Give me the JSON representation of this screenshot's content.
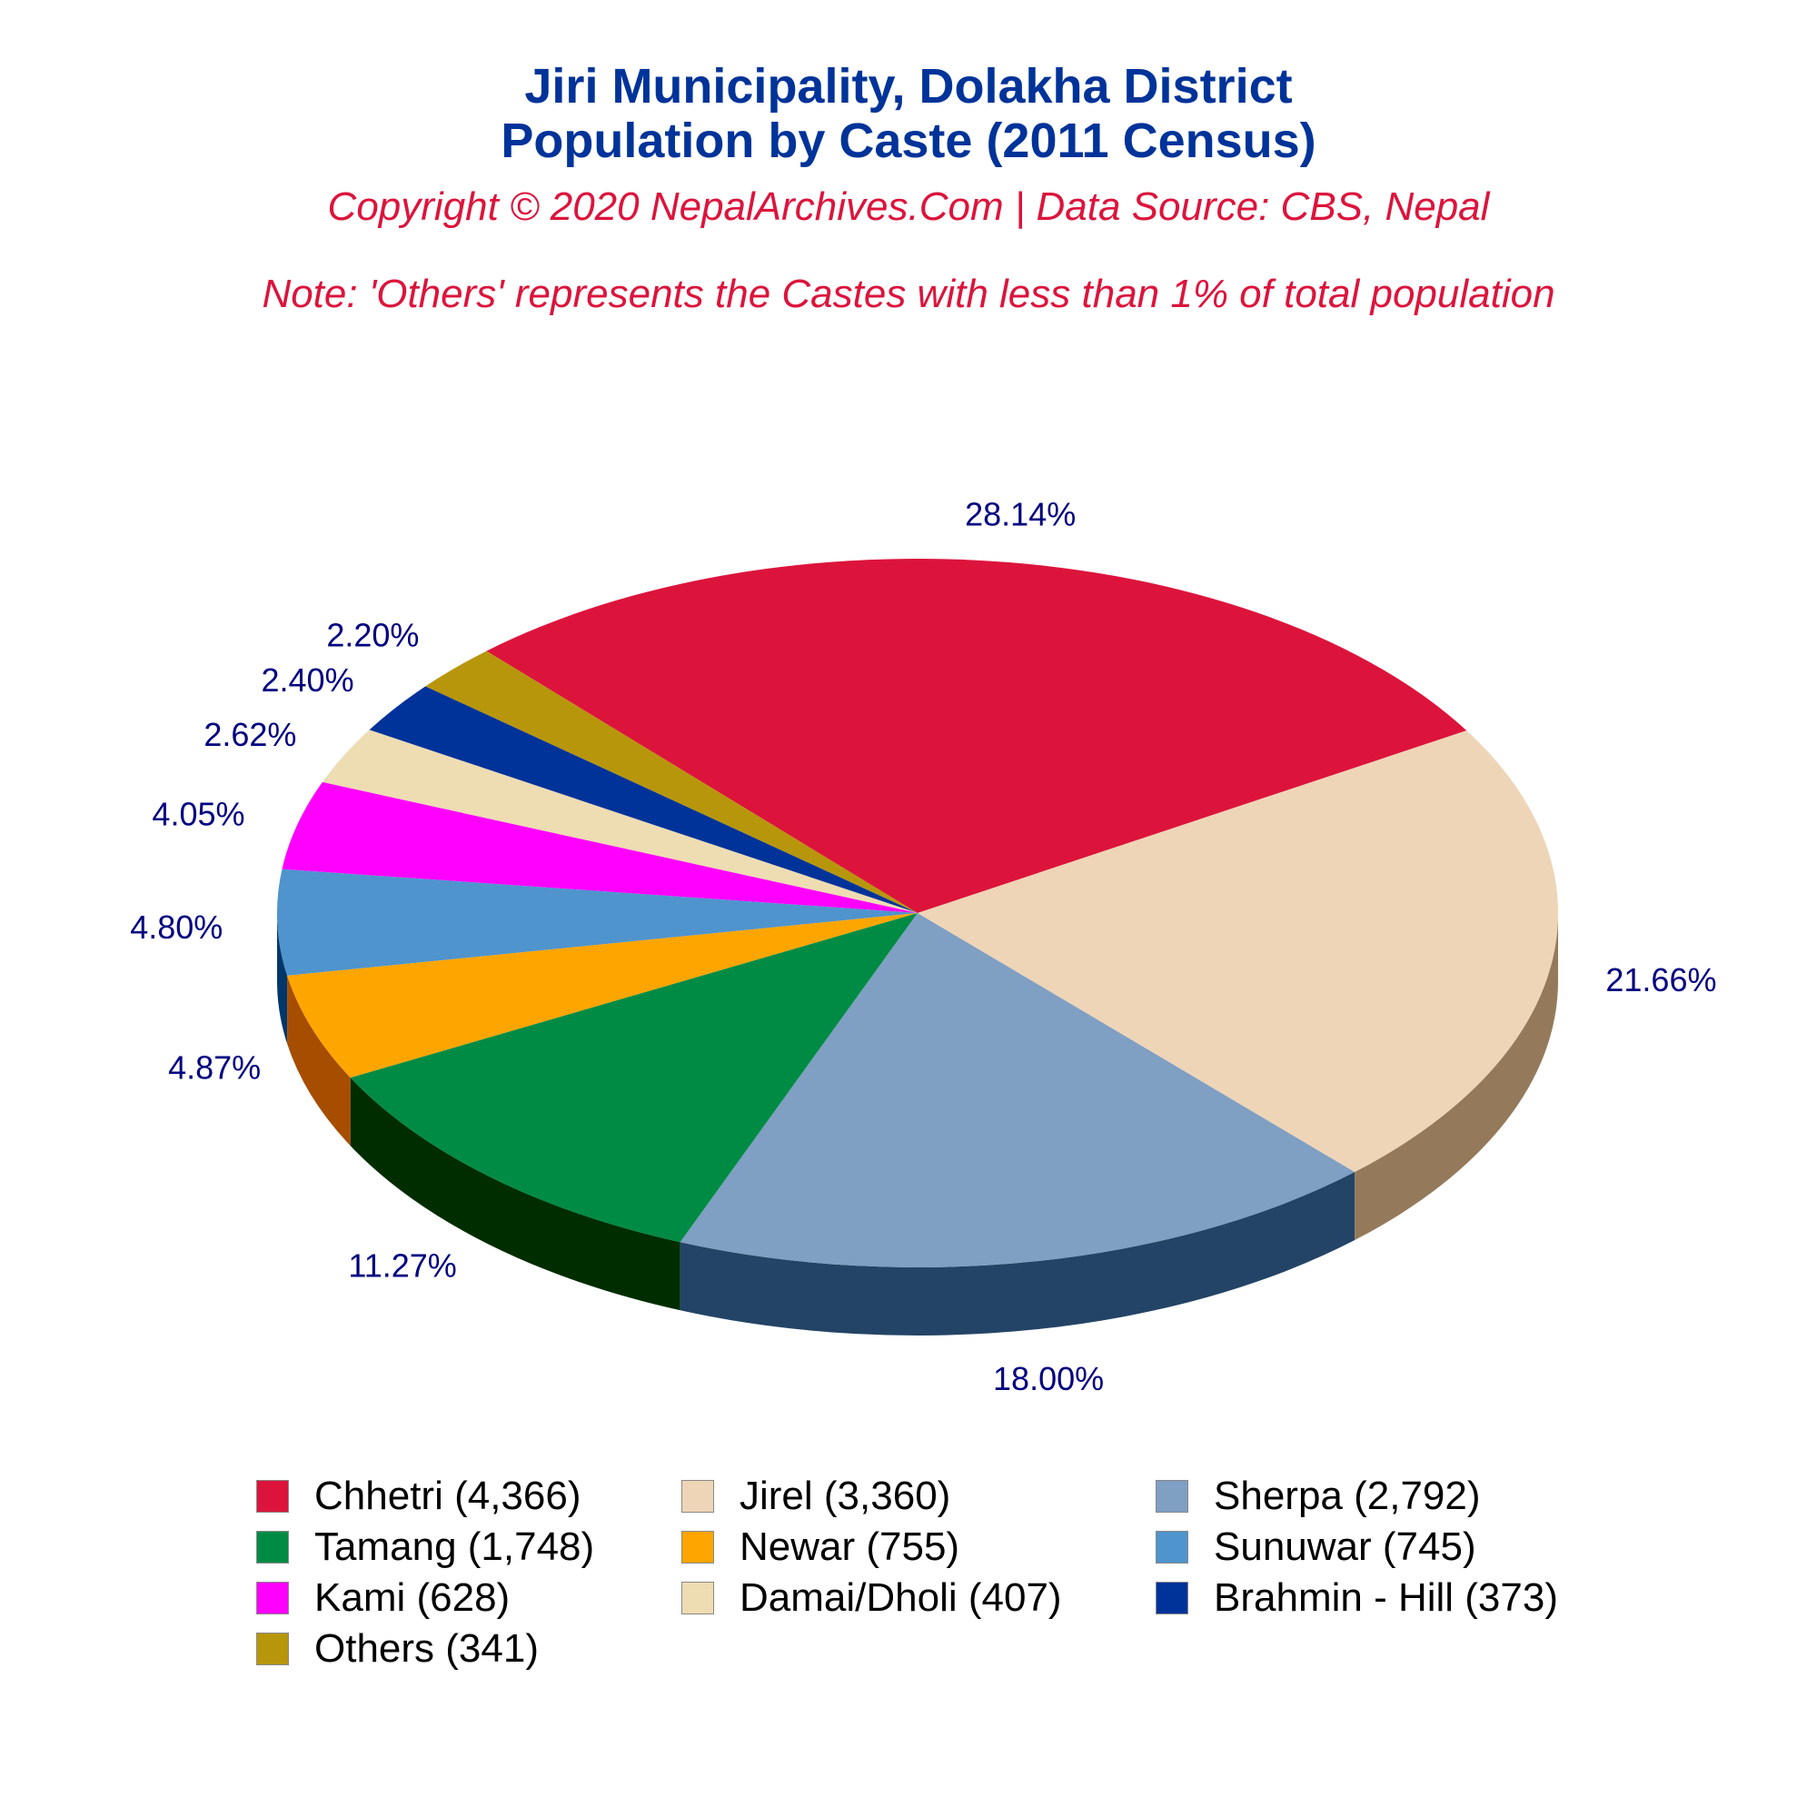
{
  "title_line1": "Jiri Municipality, Dolakha District",
  "title_line2": "Population by Caste (2011 Census)",
  "copyright": "Copyright © 2020 NepalArchives.Com | Data Source: CBS, Nepal",
  "note": "Note: 'Others' represents the Castes with less than 1% of total population",
  "colors": {
    "title": "#003399",
    "subtitle": "#dc143c",
    "label": "#000080"
  },
  "chart_data": {
    "type": "pie",
    "title": "Jiri Municipality, Dolakha District Population by Caste (2011 Census)",
    "legend_position": "bottom",
    "slices": [
      {
        "name": "Chhetri",
        "value": 4366,
        "percent": 28.14,
        "percent_label": "28.14%",
        "legend_label": "Chhetri (4,366)",
        "color": "#dc143c",
        "side_color": "#8b0a22"
      },
      {
        "name": "Others",
        "value": 341,
        "percent": 2.2,
        "percent_label": "2.20%",
        "legend_label": "Others (341)",
        "color": "#b8960c",
        "side_color": "#6e5a07"
      },
      {
        "name": "Brahmin - Hill",
        "value": 373,
        "percent": 2.4,
        "percent_label": "2.40%",
        "legend_label": "Brahmin - Hill (373)",
        "color": "#003399",
        "side_color": "#001a55"
      },
      {
        "name": "Damai/Dholi",
        "value": 407,
        "percent": 2.62,
        "percent_label": "2.62%",
        "legend_label": "Damai/Dholi (407)",
        "color": "#eedcb3",
        "side_color": "#a8987a"
      },
      {
        "name": "Kami",
        "value": 628,
        "percent": 4.05,
        "percent_label": "4.05%",
        "legend_label": "Kami (628)",
        "color": "#ff00ff",
        "side_color": "#a000a0"
      },
      {
        "name": "Sunuwar",
        "value": 745,
        "percent": 4.8,
        "percent_label": "4.80%",
        "legend_label": "Sunuwar (745)",
        "color": "#4f94cd",
        "side_color": "#00376b"
      },
      {
        "name": "Newar",
        "value": 755,
        "percent": 4.87,
        "percent_label": "4.87%",
        "legend_label": "Newar (755)",
        "color": "#ffa500",
        "side_color": "#a64d00"
      },
      {
        "name": "Tamang",
        "value": 1748,
        "percent": 11.27,
        "percent_label": "11.27%",
        "legend_label": "Tamang (1,748)",
        "color": "#008b45",
        "side_color": "#002d00"
      },
      {
        "name": "Sherpa",
        "value": 2792,
        "percent": 18.0,
        "percent_label": "18.00%",
        "legend_label": "Sherpa (2,792)",
        "color": "#7f9fc3",
        "side_color": "#234466"
      },
      {
        "name": "Jirel",
        "value": 3360,
        "percent": 21.66,
        "percent_label": "21.66%",
        "legend_label": "Jirel (3,360)",
        "color": "#eed5b7",
        "side_color": "#947a5b"
      }
    ],
    "legend_order": [
      "Chhetri",
      "Jirel",
      "Sherpa",
      "Tamang",
      "Newar",
      "Sunuwar",
      "Kami",
      "Damai/Dholi",
      "Brahmin - Hill",
      "Others"
    ]
  }
}
